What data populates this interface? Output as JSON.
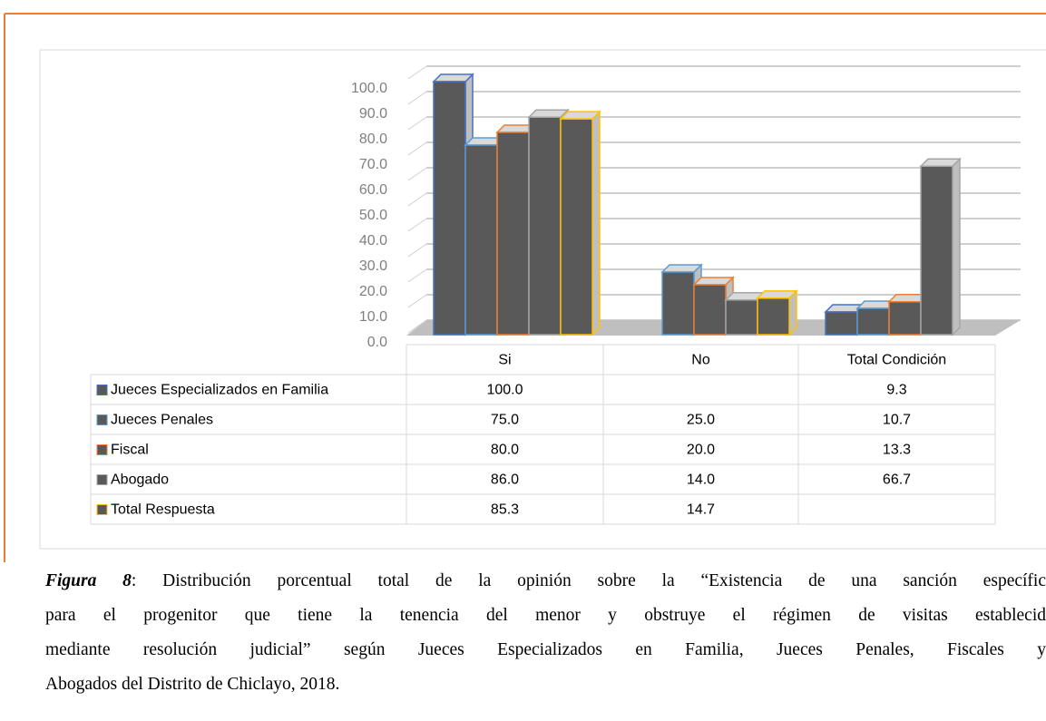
{
  "chart_data": {
    "type": "bar3d",
    "categories": [
      "Si",
      "No",
      "Total Condición"
    ],
    "series": [
      {
        "name": "Jueces Especializados en Familia",
        "color": "#4472c4",
        "values": [
          100,
          null,
          9.3
        ],
        "value_labels": [
          "100.0",
          null,
          "9.3"
        ]
      },
      {
        "name": "Jueces Penales",
        "color": "#5b9bd5",
        "values": [
          75,
          25,
          10.7
        ],
        "value_labels": [
          "75.0",
          "25.0",
          "10.7"
        ]
      },
      {
        "name": "Fiscal",
        "color": "#ed7d31",
        "values": [
          80,
          20,
          13.3
        ],
        "value_labels": [
          "80.0",
          "20.0",
          "13.3"
        ]
      },
      {
        "name": "Abogado",
        "color": "#a5a5a5",
        "values": [
          86,
          14,
          66.7
        ],
        "value_labels": [
          "86.0",
          "14.0",
          "66.7"
        ]
      },
      {
        "name": "Total Respuesta",
        "color": "#ffc000",
        "values": [
          85.3,
          14.7,
          null
        ],
        "value_labels": [
          "85.3",
          "14.7",
          null
        ]
      }
    ],
    "bar_fill": "#595959",
    "ylim": [
      0,
      100
    ],
    "yticks": [
      {
        "value": 0,
        "label": "0.0"
      },
      {
        "value": 10,
        "label": "10.0"
      },
      {
        "value": 20,
        "label": "20.0"
      },
      {
        "value": 30,
        "label": "30.0"
      },
      {
        "value": 40,
        "label": "40.0"
      },
      {
        "value": 50,
        "label": "50.0"
      },
      {
        "value": 60,
        "label": "60.0"
      },
      {
        "value": 70,
        "label": "70.0"
      },
      {
        "value": 80,
        "label": "80.0"
      },
      {
        "value": 90,
        "label": "90.0"
      },
      {
        "value": 100,
        "label": "100.0"
      }
    ],
    "grid": true
  },
  "caption": {
    "label": "Figura 8",
    "lines": [
      ": Distribución porcentual total de la opinión sobre la “Existencia de una sanción específic",
      "para el progenitor que tiene la tenencia del menor y obstruye el régimen de visitas establecid",
      "mediante resolución judicial” según Jueces Especializados en Familia, Jueces Penales, Fiscales y",
      "Abogados del Distrito de Chiclayo, 2018."
    ]
  }
}
